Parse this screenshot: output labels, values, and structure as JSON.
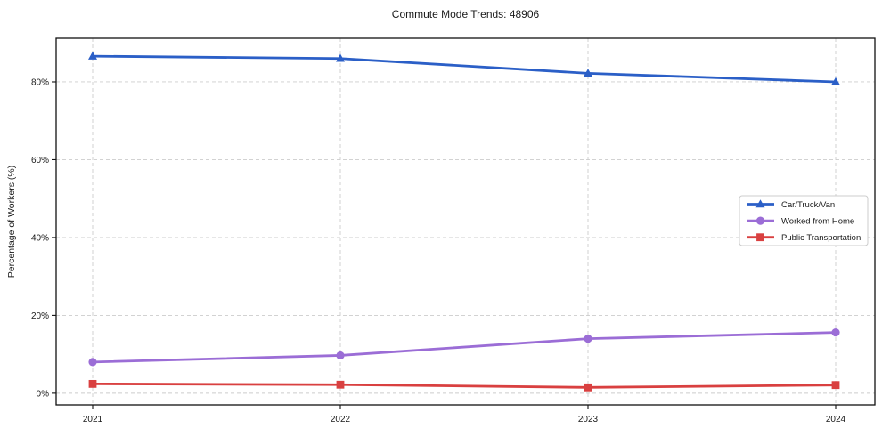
{
  "figure": {
    "background": "#ffffff"
  },
  "chart_data": {
    "type": "line",
    "title": "Commute Mode Trends: 48906",
    "xlabel": "",
    "ylabel": "Percentage of Workers (%)",
    "categories": [
      "2021",
      "2022",
      "2023",
      "2024"
    ],
    "series": [
      {
        "name": "Car/Truck/Van",
        "color": "#2b5fc7",
        "marker": "triangle",
        "values": [
          86.6,
          86.0,
          82.2,
          80.0
        ]
      },
      {
        "name": "Worked from Home",
        "color": "#9b6dd6",
        "marker": "circle",
        "values": [
          8.0,
          9.7,
          14.0,
          15.6
        ]
      },
      {
        "name": "Public Transportation",
        "color": "#d94040",
        "marker": "square",
        "values": [
          2.4,
          2.2,
          1.5,
          2.1
        ]
      }
    ],
    "y_ticks": [
      {
        "value": 0,
        "label": "0%"
      },
      {
        "value": 20,
        "label": "20%"
      },
      {
        "value": 40,
        "label": "40%"
      },
      {
        "value": 60,
        "label": "60%"
      },
      {
        "value": 80,
        "label": "80%"
      }
    ],
    "ylim": [
      -3.0,
      91.2
    ],
    "grid": true,
    "grid_style": "dashed",
    "legend_position": "center-right-inside"
  },
  "colors": {
    "grid": "#cccccc",
    "spine": "#111111",
    "tick_text": "#1a1a1a",
    "legend_border": "#cccccc",
    "legend_bg": "#ffffff"
  }
}
